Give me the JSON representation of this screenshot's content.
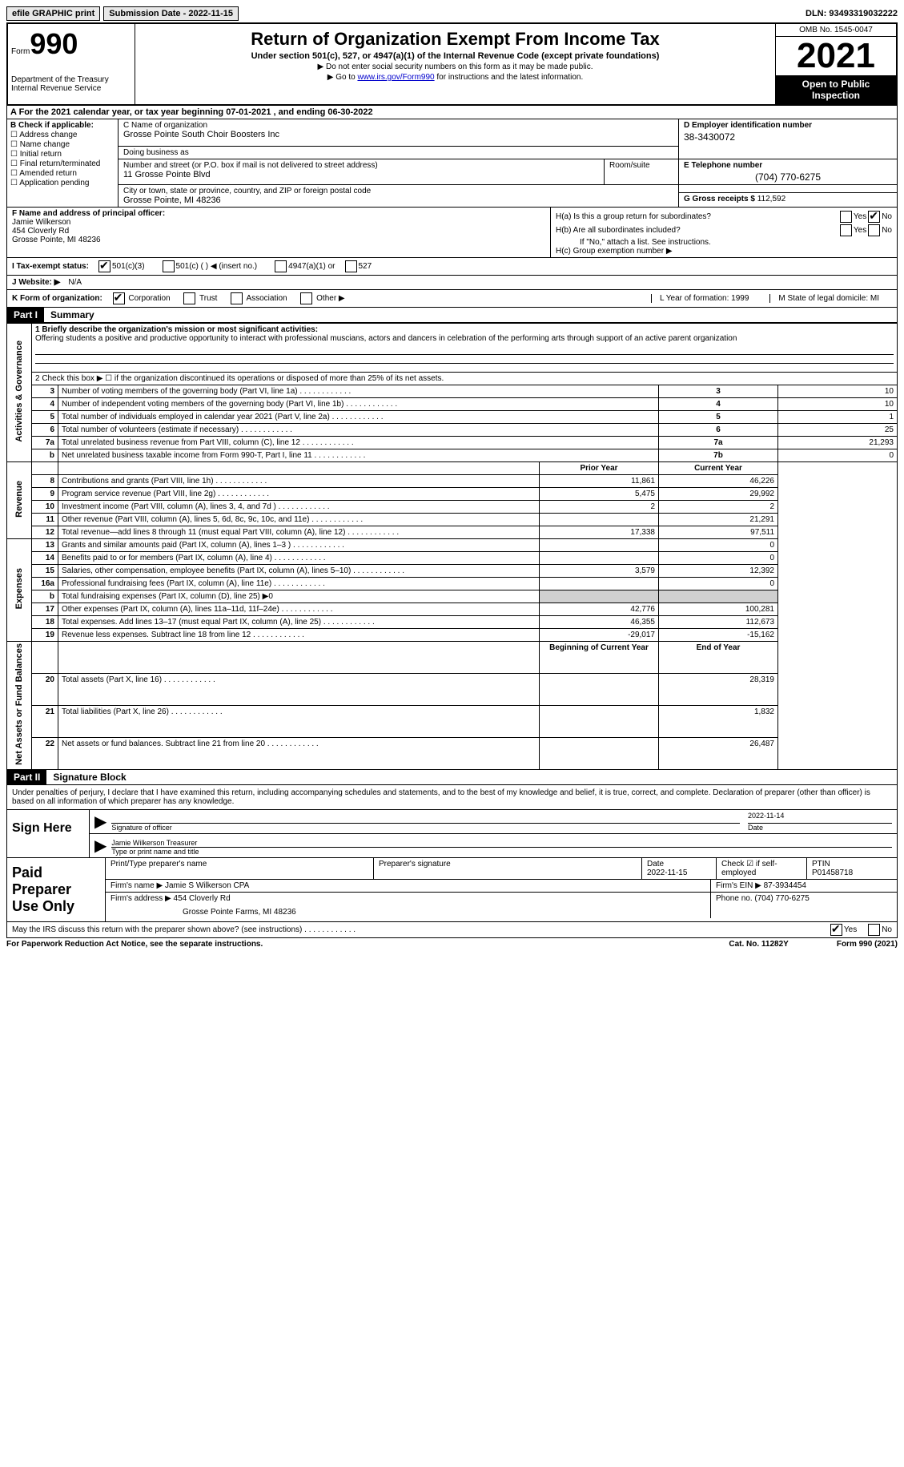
{
  "topbar": {
    "efile": "efile GRAPHIC print",
    "submission_label": "Submission Date - ",
    "submission_date": "2022-11-15",
    "dln_label": "DLN: ",
    "dln": "93493319032222"
  },
  "header": {
    "form_prefix": "Form",
    "form_number": "990",
    "dept": "Department of the Treasury\nInternal Revenue Service",
    "title": "Return of Organization Exempt From Income Tax",
    "subtitle": "Under section 501(c), 527, or 4947(a)(1) of the Internal Revenue Code (except private foundations)",
    "note1": "Do not enter social security numbers on this form as it may be made public.",
    "note2_pre": "Go to ",
    "note2_link": "www.irs.gov/Form990",
    "note2_post": " for instructions and the latest information.",
    "omb": "OMB No. 1545-0047",
    "year": "2021",
    "inspection": "Open to Public Inspection"
  },
  "row_a": "A For the 2021 calendar year, or tax year beginning 07-01-2021   , and ending 06-30-2022",
  "col_b": {
    "label": "B Check if applicable:",
    "items": [
      "Address change",
      "Name change",
      "Initial return",
      "Final return/terminated",
      "Amended return",
      "Application pending"
    ]
  },
  "col_c": {
    "name_lbl": "C Name of organization",
    "name": "Grosse Pointe South Choir Boosters Inc",
    "dba_lbl": "Doing business as",
    "dba": "",
    "addr_lbl": "Number and street (or P.O. box if mail is not delivered to street address)",
    "addr": "11 Grosse Pointe Blvd",
    "room_lbl": "Room/suite",
    "city_lbl": "City or town, state or province, country, and ZIP or foreign postal code",
    "city": "Grosse Pointe, MI  48236"
  },
  "col_d": {
    "ein_lbl": "D Employer identification number",
    "ein": "38-3430072",
    "tel_lbl": "E Telephone number",
    "tel": "(704) 770-6275",
    "gross_lbl": "G Gross receipts $ ",
    "gross": "112,592"
  },
  "col_f": {
    "lbl": "F Name and address of principal officer:",
    "name": "Jamie Wilkerson",
    "addr1": "454 Cloverly Rd",
    "addr2": "Grosse Pointe, MI  48236"
  },
  "col_h": {
    "ha": "H(a)  Is this a group return for subordinates?",
    "hb": "H(b)  Are all subordinates included?",
    "hb_note": "If \"No,\" attach a list. See instructions.",
    "hc": "H(c)  Group exemption number ▶",
    "yes": "Yes",
    "no": "No"
  },
  "status": {
    "lbl": "I   Tax-exempt status:",
    "opt1": "501(c)(3)",
    "opt2": "501(c) (  ) ◀ (insert no.)",
    "opt3": "4947(a)(1) or",
    "opt4": "527"
  },
  "website": {
    "lbl": "J  Website: ▶",
    "val": "N/A"
  },
  "row_k": {
    "k_lbl": "K Form of organization:",
    "k_opts": [
      "Corporation",
      "Trust",
      "Association",
      "Other ▶"
    ],
    "l": "L Year of formation: 1999",
    "m": "M State of legal domicile: MI"
  },
  "part1": {
    "num": "Part I",
    "title": "Summary"
  },
  "summary": {
    "line1_lbl": "1   Briefly describe the organization's mission or most significant activities:",
    "line1_txt": "Offering students a positive and productive opportunity to interact with professional muscians, actors and dancers in celebration of the performing arts through support of an active parent organization",
    "line2": "2   Check this box ▶ ☐  if the organization discontinued its operations or disposed of more than 25% of its net assets.",
    "sections": [
      {
        "label": "Activities & Governance",
        "rows": [
          {
            "n": "3",
            "d": "Number of voting members of the governing body (Part VI, line 1a)",
            "box": "3",
            "v2": "10"
          },
          {
            "n": "4",
            "d": "Number of independent voting members of the governing body (Part VI, line 1b)",
            "box": "4",
            "v2": "10"
          },
          {
            "n": "5",
            "d": "Total number of individuals employed in calendar year 2021 (Part V, line 2a)",
            "box": "5",
            "v2": "1"
          },
          {
            "n": "6",
            "d": "Total number of volunteers (estimate if necessary)",
            "box": "6",
            "v2": "25"
          },
          {
            "n": "7a",
            "d": "Total unrelated business revenue from Part VIII, column (C), line 12",
            "box": "7a",
            "v2": "21,293"
          },
          {
            "n": "b",
            "d": "Net unrelated business taxable income from Form 990-T, Part I, line 11",
            "box": "7b",
            "v2": "0"
          }
        ]
      },
      {
        "label": "Revenue",
        "header": true,
        "h1": "Prior Year",
        "h2": "Current Year",
        "rows": [
          {
            "n": "8",
            "d": "Contributions and grants (Part VIII, line 1h)",
            "v1": "11,861",
            "v2": "46,226"
          },
          {
            "n": "9",
            "d": "Program service revenue (Part VIII, line 2g)",
            "v1": "5,475",
            "v2": "29,992"
          },
          {
            "n": "10",
            "d": "Investment income (Part VIII, column (A), lines 3, 4, and 7d )",
            "v1": "2",
            "v2": "2"
          },
          {
            "n": "11",
            "d": "Other revenue (Part VIII, column (A), lines 5, 6d, 8c, 9c, 10c, and 11e)",
            "v1": "",
            "v2": "21,291"
          },
          {
            "n": "12",
            "d": "Total revenue—add lines 8 through 11 (must equal Part VIII, column (A), line 12)",
            "v1": "17,338",
            "v2": "97,511"
          }
        ]
      },
      {
        "label": "Expenses",
        "rows": [
          {
            "n": "13",
            "d": "Grants and similar amounts paid (Part IX, column (A), lines 1–3 )",
            "v1": "",
            "v2": "0"
          },
          {
            "n": "14",
            "d": "Benefits paid to or for members (Part IX, column (A), line 4)",
            "v1": "",
            "v2": "0"
          },
          {
            "n": "15",
            "d": "Salaries, other compensation, employee benefits (Part IX, column (A), lines 5–10)",
            "v1": "3,579",
            "v2": "12,392"
          },
          {
            "n": "16a",
            "d": "Professional fundraising fees (Part IX, column (A), line 11e)",
            "v1": "",
            "v2": "0"
          },
          {
            "n": "b",
            "d": "Total fundraising expenses (Part IX, column (D), line 25) ▶0",
            "shade": true
          },
          {
            "n": "17",
            "d": "Other expenses (Part IX, column (A), lines 11a–11d, 11f–24e)",
            "v1": "42,776",
            "v2": "100,281"
          },
          {
            "n": "18",
            "d": "Total expenses. Add lines 13–17 (must equal Part IX, column (A), line 25)",
            "v1": "46,355",
            "v2": "112,673"
          },
          {
            "n": "19",
            "d": "Revenue less expenses. Subtract line 18 from line 12",
            "v1": "-29,017",
            "v2": "-15,162"
          }
        ]
      },
      {
        "label": "Net Assets or Fund Balances",
        "header": true,
        "h1": "Beginning of Current Year",
        "h2": "End of Year",
        "rows": [
          {
            "n": "20",
            "d": "Total assets (Part X, line 16)",
            "v1": "",
            "v2": "28,319"
          },
          {
            "n": "21",
            "d": "Total liabilities (Part X, line 26)",
            "v1": "",
            "v2": "1,832"
          },
          {
            "n": "22",
            "d": "Net assets or fund balances. Subtract line 21 from line 20",
            "v1": "",
            "v2": "26,487"
          }
        ]
      }
    ]
  },
  "part2": {
    "num": "Part II",
    "title": "Signature Block"
  },
  "sig": {
    "perjury": "Under penalties of perjury, I declare that I have examined this return, including accompanying schedules and statements, and to the best of my knowledge and belief, it is true, correct, and complete. Declaration of preparer (other than officer) is based on all information of which preparer has any knowledge.",
    "sign_here": "Sign Here",
    "sig_officer_lbl": "Signature of officer",
    "date_lbl": "Date",
    "date": "2022-11-14",
    "name_title": "Jamie Wilkerson  Treasurer",
    "name_title_lbl": "Type or print name and title"
  },
  "prep": {
    "title": "Paid Preparer Use Only",
    "c1": "Print/Type preparer's name",
    "c2": "Preparer's signature",
    "c3_lbl": "Date",
    "c3": "2022-11-15",
    "c4": "Check ☑ if self-employed",
    "c5_lbl": "PTIN",
    "c5": "P01458718",
    "firm_lbl": "Firm's name    ▶ ",
    "firm": "Jamie S Wilkerson CPA",
    "ein_lbl": "Firm's EIN ▶ ",
    "ein": "87-3934454",
    "addr_lbl": "Firm's address ▶ ",
    "addr1": "454 Cloverly Rd",
    "addr2": "Grosse Pointe Farms, MI  48236",
    "phone_lbl": "Phone no. ",
    "phone": "(704) 770-6275"
  },
  "footer": {
    "discuss": "May the IRS discuss this return with the preparer shown above? (see instructions)",
    "yes": "Yes",
    "no": "No",
    "pra": "For Paperwork Reduction Act Notice, see the separate instructions.",
    "cat": "Cat. No. 11282Y",
    "form": "Form 990 (2021)"
  }
}
